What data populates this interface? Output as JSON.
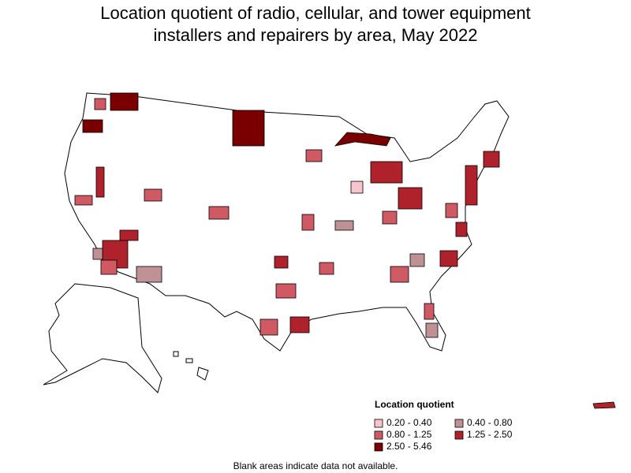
{
  "title": [
    "Location quotient of radio, cellular, and tower equipment",
    "installers and repairers by area, May 2022"
  ],
  "legend": {
    "title": "Location quotient",
    "items": [
      {
        "label": "0.20 - 0.40",
        "color": "#f6c4cb"
      },
      {
        "label": "0.40 - 0.80",
        "color": "#c09194"
      },
      {
        "label": "0.80 - 1.25",
        "color": "#d05a64"
      },
      {
        "label": "1.25 - 2.50",
        "color": "#b0222b"
      },
      {
        "label": "2.50 - 5.46",
        "color": "#7a0000"
      }
    ]
  },
  "note": "Blank areas indicate data not available."
}
